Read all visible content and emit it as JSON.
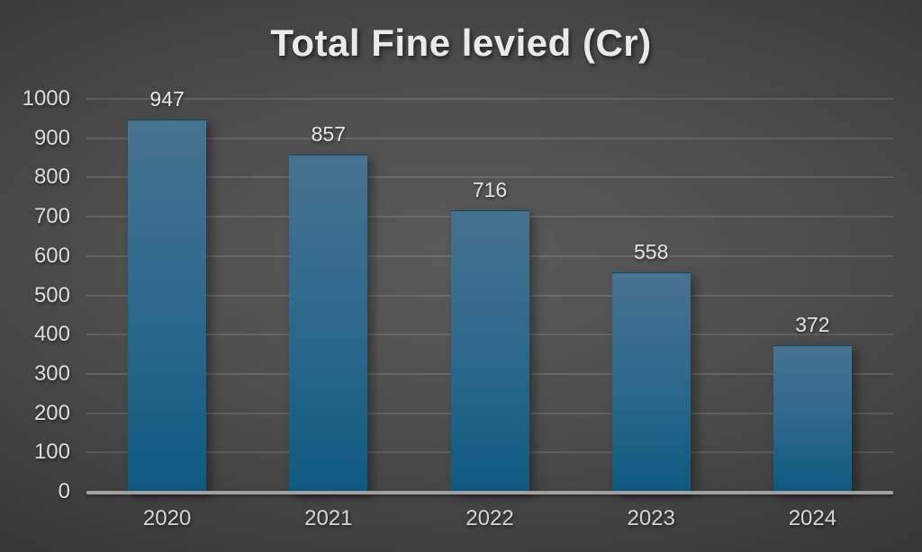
{
  "chart_data": {
    "type": "bar",
    "title": "Total Fine levied (Cr)",
    "categories": [
      "2020",
      "2021",
      "2022",
      "2023",
      "2024"
    ],
    "values": [
      947,
      857,
      716,
      558,
      372
    ],
    "data_labels": [
      947,
      857,
      716,
      558,
      372
    ],
    "xlabel": "",
    "ylabel": "",
    "ylim": [
      0,
      1000
    ],
    "yticks": [
      0,
      100,
      200,
      300,
      400,
      500,
      600,
      700,
      800,
      900,
      1000
    ],
    "grid": true,
    "legend": false,
    "colors": {
      "bar_top": "#46728f",
      "bar_bottom": "#0e5a80",
      "background_center": "#5a5a5a",
      "background_edge": "#242424",
      "gridline": "rgba(255,255,255,0.12)",
      "axis_line": "#a1a1a1",
      "tick_text": "#dcdcdc",
      "title_text": "#eaeaea"
    }
  }
}
